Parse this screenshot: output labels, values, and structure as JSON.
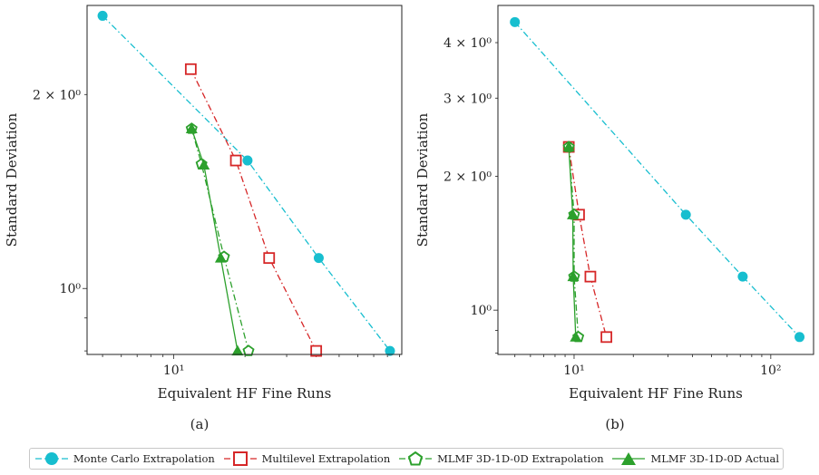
{
  "chart_data": [
    {
      "type": "line",
      "caption": "(a)",
      "xlabel": "Equivalent HF Fine Runs",
      "ylabel": "Standard Deviation",
      "xscale": "log",
      "yscale": "log",
      "xlim": [
        4.3,
        92
      ],
      "ylim": [
        0.79,
        2.75
      ],
      "xticks": [
        {
          "value": 10,
          "label": "10¹"
        }
      ],
      "yticks": [
        {
          "value": 1,
          "label": "10⁰"
        },
        {
          "value": 2,
          "label": "2 × 10⁰"
        }
      ],
      "series": [
        {
          "name": "Monte Carlo Extrapolation",
          "x": [
            5,
            20.5,
            41,
            82
          ],
          "y": [
            2.65,
            1.58,
            1.115,
            0.8
          ]
        },
        {
          "name": "Multilevel Extrapolation",
          "x": [
            11.8,
            18.3,
            25.3,
            40
          ],
          "y": [
            2.19,
            1.58,
            1.115,
            0.8
          ]
        },
        {
          "name": "MLMF 3D-1D-0D Extrapolation",
          "x": [
            11.9,
            13.1,
            16.3,
            20.7
          ],
          "y": [
            1.77,
            1.56,
            1.12,
            0.8
          ]
        },
        {
          "name": "MLMF 3D-1D-0D Actual",
          "x": [
            11.9,
            13.4,
            15.8,
            18.6
          ],
          "y": [
            1.77,
            1.555,
            1.115,
            0.8
          ]
        }
      ]
    },
    {
      "type": "line",
      "caption": "(b)",
      "xlabel": "Equivalent HF Fine Runs",
      "ylabel": "Standard Deviation",
      "xscale": "log",
      "yscale": "log",
      "xlim": [
        4.1,
        165
      ],
      "ylim": [
        0.795,
        4.85
      ],
      "xticks": [
        {
          "value": 10,
          "label": "10¹"
        },
        {
          "value": 100,
          "label": "10²"
        }
      ],
      "yticks": [
        {
          "value": 1,
          "label": "10⁰"
        },
        {
          "value": 2,
          "label": "2 × 10⁰"
        },
        {
          "value": 3,
          "label": "3 × 10⁰"
        },
        {
          "value": 4,
          "label": "4 × 10⁰"
        }
      ],
      "series": [
        {
          "name": "Monte Carlo Extrapolation",
          "x": [
            5,
            37,
            72,
            140
          ],
          "y": [
            4.45,
            1.64,
            1.19,
            0.87
          ]
        },
        {
          "name": "Multilevel Extrapolation",
          "x": [
            9.4,
            10.6,
            12.1,
            14.6
          ],
          "y": [
            2.33,
            1.64,
            1.19,
            0.87
          ]
        },
        {
          "name": "MLMF 3D-1D-0D Extrapolation",
          "x": [
            9.4,
            10.0,
            10.0,
            10.5
          ],
          "y": [
            2.33,
            1.64,
            1.19,
            0.87
          ]
        },
        {
          "name": "MLMF 3D-1D-0D Actual",
          "x": [
            9.4,
            9.85,
            9.9,
            10.2
          ],
          "y": [
            2.33,
            1.64,
            1.19,
            0.87
          ]
        }
      ]
    }
  ],
  "series_style": [
    {
      "color": "#17becf",
      "marker": "circle",
      "fill": true,
      "dash": "7,3,1.5,3"
    },
    {
      "color": "#d62728",
      "marker": "square",
      "fill": false,
      "dash": "7,3,1.5,3"
    },
    {
      "color": "#2ca02c",
      "marker": "pentagon",
      "fill": false,
      "dash": "7,3,1.5,3"
    },
    {
      "color": "#2ca02c",
      "marker": "triangle",
      "fill": true,
      "dash": ""
    }
  ],
  "legend": {
    "placement": "bottom",
    "items": [
      "Monte Carlo Extrapolation",
      "Multilevel Extrapolation",
      "MLMF 3D-1D-0D Extrapolation",
      "MLMF 3D-1D-0D Actual"
    ]
  }
}
